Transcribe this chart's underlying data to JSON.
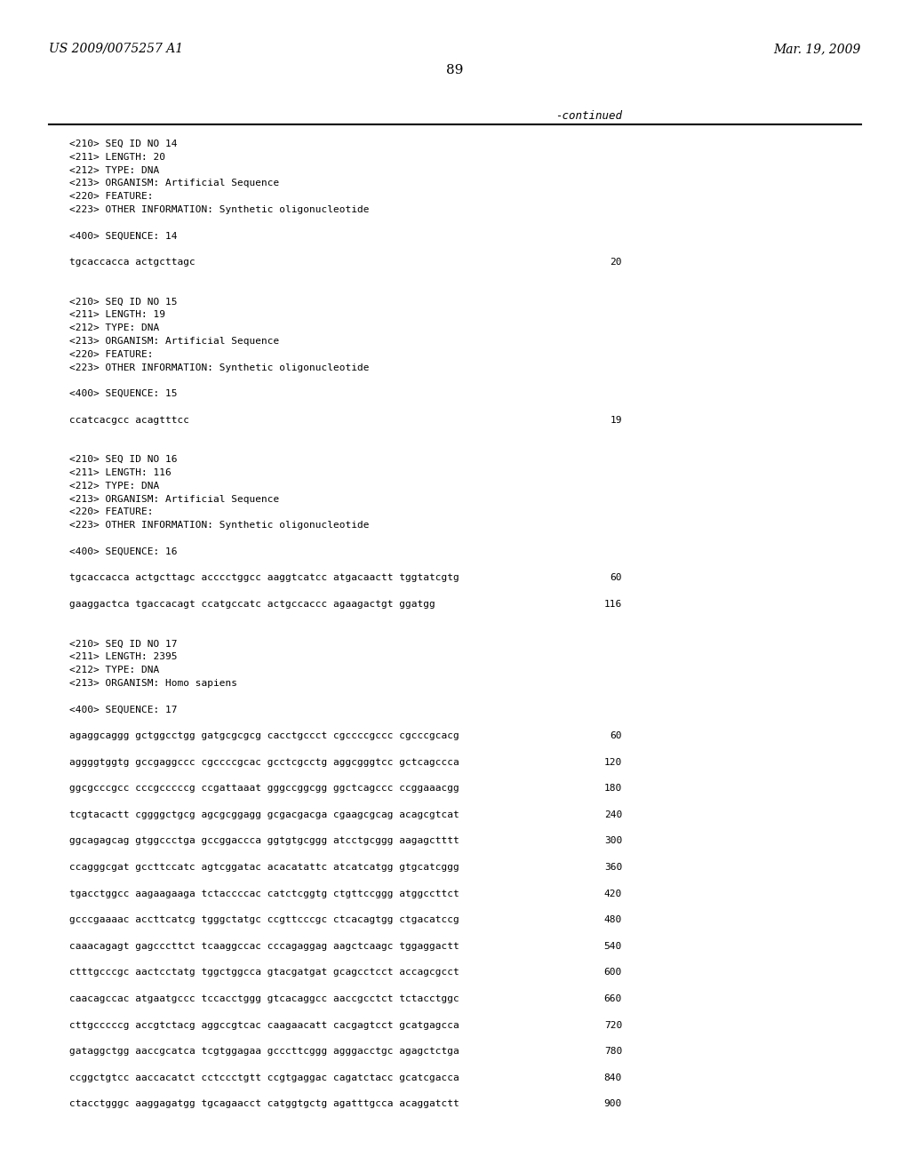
{
  "header_left": "US 2009/0075257 A1",
  "header_right": "Mar. 19, 2009",
  "page_number": "89",
  "continued_label": "-continued",
  "background_color": "#ffffff",
  "text_color": "#000000",
  "lines": [
    {
      "text": "<210> SEQ ID NO 14",
      "type": "meta"
    },
    {
      "text": "<211> LENGTH: 20",
      "type": "meta"
    },
    {
      "text": "<212> TYPE: DNA",
      "type": "meta"
    },
    {
      "text": "<213> ORGANISM: Artificial Sequence",
      "type": "meta"
    },
    {
      "text": "<220> FEATURE:",
      "type": "meta"
    },
    {
      "text": "<223> OTHER INFORMATION: Synthetic oligonucleotide",
      "type": "meta"
    },
    {
      "text": "",
      "type": "blank"
    },
    {
      "text": "<400> SEQUENCE: 14",
      "type": "meta"
    },
    {
      "text": "",
      "type": "blank"
    },
    {
      "text": "tgcaccacca actgcttagc",
      "type": "seq",
      "num": "20"
    },
    {
      "text": "",
      "type": "blank"
    },
    {
      "text": "",
      "type": "blank"
    },
    {
      "text": "<210> SEQ ID NO 15",
      "type": "meta"
    },
    {
      "text": "<211> LENGTH: 19",
      "type": "meta"
    },
    {
      "text": "<212> TYPE: DNA",
      "type": "meta"
    },
    {
      "text": "<213> ORGANISM: Artificial Sequence",
      "type": "meta"
    },
    {
      "text": "<220> FEATURE:",
      "type": "meta"
    },
    {
      "text": "<223> OTHER INFORMATION: Synthetic oligonucleotide",
      "type": "meta"
    },
    {
      "text": "",
      "type": "blank"
    },
    {
      "text": "<400> SEQUENCE: 15",
      "type": "meta"
    },
    {
      "text": "",
      "type": "blank"
    },
    {
      "text": "ccatcacgcc acagtttcc",
      "type": "seq",
      "num": "19"
    },
    {
      "text": "",
      "type": "blank"
    },
    {
      "text": "",
      "type": "blank"
    },
    {
      "text": "<210> SEQ ID NO 16",
      "type": "meta"
    },
    {
      "text": "<211> LENGTH: 116",
      "type": "meta"
    },
    {
      "text": "<212> TYPE: DNA",
      "type": "meta"
    },
    {
      "text": "<213> ORGANISM: Artificial Sequence",
      "type": "meta"
    },
    {
      "text": "<220> FEATURE:",
      "type": "meta"
    },
    {
      "text": "<223> OTHER INFORMATION: Synthetic oligonucleotide",
      "type": "meta"
    },
    {
      "text": "",
      "type": "blank"
    },
    {
      "text": "<400> SEQUENCE: 16",
      "type": "meta"
    },
    {
      "text": "",
      "type": "blank"
    },
    {
      "text": "tgcaccacca actgcttagc acccctggcc aaggtcatcc atgacaactt tggtatcgtg",
      "type": "seq",
      "num": "60"
    },
    {
      "text": "",
      "type": "blank"
    },
    {
      "text": "gaaggactca tgaccacagt ccatgccatc actgccaccc agaagactgt ggatgg",
      "type": "seq",
      "num": "116"
    },
    {
      "text": "",
      "type": "blank"
    },
    {
      "text": "",
      "type": "blank"
    },
    {
      "text": "<210> SEQ ID NO 17",
      "type": "meta"
    },
    {
      "text": "<211> LENGTH: 2395",
      "type": "meta"
    },
    {
      "text": "<212> TYPE: DNA",
      "type": "meta"
    },
    {
      "text": "<213> ORGANISM: Homo sapiens",
      "type": "meta"
    },
    {
      "text": "",
      "type": "blank"
    },
    {
      "text": "<400> SEQUENCE: 17",
      "type": "meta"
    },
    {
      "text": "",
      "type": "blank"
    },
    {
      "text": "agaggcaggg gctggcctgg gatgcgcgcg cacctgccct cgccccgccc cgcccgcacg",
      "type": "seq",
      "num": "60"
    },
    {
      "text": "",
      "type": "blank"
    },
    {
      "text": "aggggtggtg gccgaggccc cgccccgcac gcctcgcctg aggcgggtcc gctcagccca",
      "type": "seq",
      "num": "120"
    },
    {
      "text": "",
      "type": "blank"
    },
    {
      "text": "ggcgcccgcc cccgcccccg ccgattaaat gggccggcgg ggctcagccc ccggaaacgg",
      "type": "seq",
      "num": "180"
    },
    {
      "text": "",
      "type": "blank"
    },
    {
      "text": "tcgtacactt cggggctgcg agcgcggagg gcgacgacga cgaagcgcag acagcgtcat",
      "type": "seq",
      "num": "240"
    },
    {
      "text": "",
      "type": "blank"
    },
    {
      "text": "ggcagagcag gtggccctga gccggaccca ggtgtgcggg atcctgcggg aagagctttt",
      "type": "seq",
      "num": "300"
    },
    {
      "text": "",
      "type": "blank"
    },
    {
      "text": "ccagggcgat gccttccatc agtcggatac acacatattc atcatcatgg gtgcatcggg",
      "type": "seq",
      "num": "360"
    },
    {
      "text": "",
      "type": "blank"
    },
    {
      "text": "tgacctggcc aagaagaaga tctaccccac catctcggtg ctgttccggg atggccttct",
      "type": "seq",
      "num": "420"
    },
    {
      "text": "",
      "type": "blank"
    },
    {
      "text": "gcccgaaaac accttcatcg tgggctatgc ccgttcccgc ctcacagtgg ctgacatccg",
      "type": "seq",
      "num": "480"
    },
    {
      "text": "",
      "type": "blank"
    },
    {
      "text": "caaacagagt gagcccttct tcaaggccac cccagaggag aagctcaagc tggaggactt",
      "type": "seq",
      "num": "540"
    },
    {
      "text": "",
      "type": "blank"
    },
    {
      "text": "ctttgcccgc aactcctatg tggctggcca gtacgatgat gcagcctcct accagcgcct",
      "type": "seq",
      "num": "600"
    },
    {
      "text": "",
      "type": "blank"
    },
    {
      "text": "caacagccac atgaatgccc tccacctggg gtcacaggcc aaccgcctct tctacctggc",
      "type": "seq",
      "num": "660"
    },
    {
      "text": "",
      "type": "blank"
    },
    {
      "text": "cttgcccccg accgtctacg aggccgtcac caagaacatt cacgagtcct gcatgagcca",
      "type": "seq",
      "num": "720"
    },
    {
      "text": "",
      "type": "blank"
    },
    {
      "text": "gataggctgg aaccgcatca tcgtggagaa gcccttcggg agggacctgc agagctctga",
      "type": "seq",
      "num": "780"
    },
    {
      "text": "",
      "type": "blank"
    },
    {
      "text": "ccggctgtcc aaccacatct cctccctgtt ccgtgaggac cagatctacc gcatcgacca",
      "type": "seq",
      "num": "840"
    },
    {
      "text": "",
      "type": "blank"
    },
    {
      "text": "ctacctgggc aaggagatgg tgcagaacct catggtgctg agatttgcca acaggatctt",
      "type": "seq",
      "num": "900"
    }
  ]
}
